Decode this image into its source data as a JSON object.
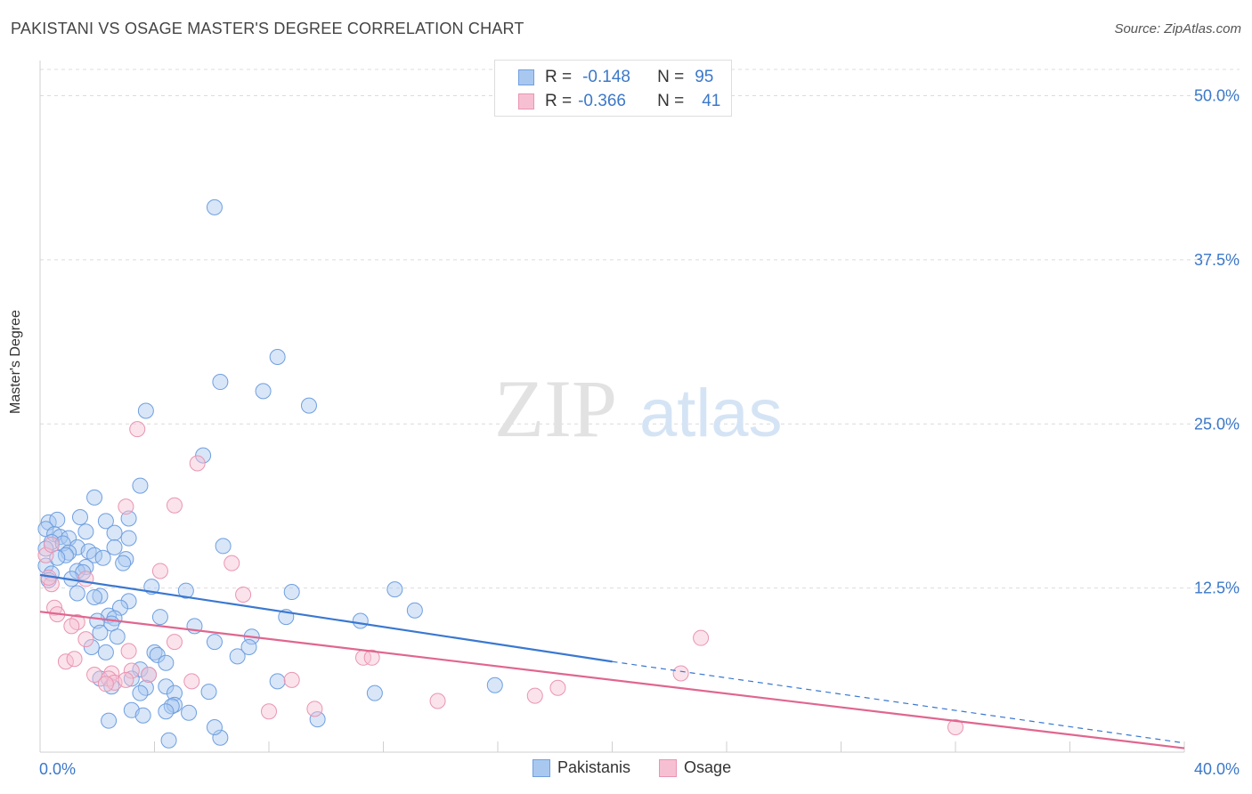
{
  "header": {
    "title": "PAKISTANI VS OSAGE MASTER'S DEGREE CORRELATION CHART",
    "source": "Source: ZipAtlas.com"
  },
  "watermark": {
    "zip": "ZIP",
    "atlas": "atlas"
  },
  "legend": {
    "rows": [
      {
        "r_label": "R =",
        "r_value": "-0.148",
        "n_label": "N =",
        "n_value": "95",
        "color": "#a9c8f0",
        "stroke": "#6f9fe0"
      },
      {
        "r_label": "R =",
        "r_value": "-0.366",
        "n_label": "N =",
        "n_value": "41",
        "color": "#f6c0d2",
        "stroke": "#e995b2"
      }
    ]
  },
  "bottom_legend": [
    {
      "label": "Pakistanis",
      "color": "#a9c8f0",
      "stroke": "#6f9fe0"
    },
    {
      "label": "Osage",
      "color": "#f6c0d2",
      "stroke": "#e995b2"
    }
  ],
  "chart_data": {
    "type": "scatter",
    "title": "PAKISTANI VS OSAGE MASTER'S DEGREE CORRELATION CHART",
    "xlabel": "",
    "ylabel": "Master's Degree",
    "xlim": [
      0,
      40
    ],
    "ylim": [
      0,
      52
    ],
    "x_tick_labels": [
      "0.0%",
      "40.0%"
    ],
    "y_ticks": [
      12.5,
      25.0,
      37.5,
      50.0
    ],
    "y_tick_labels": [
      "12.5%",
      "25.0%",
      "37.5%",
      "50.0%"
    ],
    "grid": true,
    "colors": {
      "Pakistanis": "#3a78d0",
      "Osage": "#e0668f",
      "tick": "#3b78c9"
    },
    "series": [
      {
        "name": "Pakistanis",
        "points": [
          [
            6.1,
            41.5
          ],
          [
            8.3,
            30.1
          ],
          [
            6.3,
            28.2
          ],
          [
            7.8,
            27.5
          ],
          [
            9.4,
            26.4
          ],
          [
            3.7,
            26.0
          ],
          [
            5.7,
            22.6
          ],
          [
            3.5,
            20.3
          ],
          [
            1.9,
            19.4
          ],
          [
            0.3,
            17.5
          ],
          [
            0.6,
            17.7
          ],
          [
            1.4,
            17.9
          ],
          [
            2.3,
            17.6
          ],
          [
            3.1,
            17.8
          ],
          [
            0.2,
            17.0
          ],
          [
            0.5,
            16.6
          ],
          [
            0.7,
            16.4
          ],
          [
            1.0,
            16.3
          ],
          [
            1.6,
            16.8
          ],
          [
            2.6,
            16.7
          ],
          [
            3.1,
            16.3
          ],
          [
            0.4,
            16.0
          ],
          [
            0.8,
            15.9
          ],
          [
            1.3,
            15.6
          ],
          [
            1.7,
            15.3
          ],
          [
            2.6,
            15.6
          ],
          [
            6.4,
            15.7
          ],
          [
            0.2,
            15.5
          ],
          [
            1.0,
            15.2
          ],
          [
            0.9,
            15.0
          ],
          [
            1.9,
            15.0
          ],
          [
            2.2,
            14.8
          ],
          [
            3.0,
            14.7
          ],
          [
            2.9,
            14.4
          ],
          [
            1.6,
            14.1
          ],
          [
            1.3,
            13.8
          ],
          [
            1.5,
            13.7
          ],
          [
            0.2,
            14.2
          ],
          [
            0.4,
            13.6
          ],
          [
            0.3,
            13.1
          ],
          [
            1.1,
            13.2
          ],
          [
            3.9,
            12.6
          ],
          [
            5.1,
            12.3
          ],
          [
            8.8,
            12.2
          ],
          [
            12.4,
            12.4
          ],
          [
            1.3,
            12.1
          ],
          [
            2.1,
            11.9
          ],
          [
            1.9,
            11.8
          ],
          [
            3.1,
            11.5
          ],
          [
            2.8,
            11.0
          ],
          [
            13.1,
            10.8
          ],
          [
            2.4,
            10.4
          ],
          [
            2.6,
            10.2
          ],
          [
            4.2,
            10.3
          ],
          [
            8.6,
            10.3
          ],
          [
            11.2,
            10.0
          ],
          [
            2.0,
            10.0
          ],
          [
            2.5,
            9.8
          ],
          [
            2.1,
            9.1
          ],
          [
            5.4,
            9.6
          ],
          [
            2.7,
            8.8
          ],
          [
            7.4,
            8.8
          ],
          [
            6.1,
            8.4
          ],
          [
            1.8,
            8.0
          ],
          [
            7.3,
            8.0
          ],
          [
            2.3,
            7.6
          ],
          [
            4.0,
            7.6
          ],
          [
            4.1,
            7.4
          ],
          [
            6.9,
            7.3
          ],
          [
            4.4,
            6.8
          ],
          [
            3.5,
            6.3
          ],
          [
            3.8,
            5.9
          ],
          [
            2.1,
            5.6
          ],
          [
            3.2,
            5.6
          ],
          [
            8.3,
            5.4
          ],
          [
            15.9,
            5.1
          ],
          [
            2.5,
            5.0
          ],
          [
            3.7,
            4.9
          ],
          [
            4.4,
            5.0
          ],
          [
            3.5,
            4.5
          ],
          [
            4.7,
            4.5
          ],
          [
            5.9,
            4.6
          ],
          [
            11.7,
            4.5
          ],
          [
            4.7,
            3.6
          ],
          [
            4.6,
            3.5
          ],
          [
            3.2,
            3.2
          ],
          [
            4.4,
            3.1
          ],
          [
            5.2,
            3.0
          ],
          [
            3.6,
            2.8
          ],
          [
            2.4,
            2.4
          ],
          [
            9.7,
            2.5
          ],
          [
            6.3,
            1.1
          ],
          [
            4.5,
            0.9
          ],
          [
            6.1,
            1.9
          ],
          [
            0.6,
            14.8
          ]
        ],
        "trend": {
          "x_start": 0,
          "y_start": 13.5,
          "x_solid_end": 20,
          "y_solid_end": 6.9,
          "x_end": 40,
          "y_end": 0.7
        }
      },
      {
        "name": "Osage",
        "points": [
          [
            3.4,
            24.6
          ],
          [
            5.5,
            22.0
          ],
          [
            3.0,
            18.7
          ],
          [
            4.7,
            18.8
          ],
          [
            0.2,
            15.0
          ],
          [
            6.7,
            14.4
          ],
          [
            4.2,
            13.8
          ],
          [
            0.4,
            12.8
          ],
          [
            1.6,
            13.2
          ],
          [
            7.1,
            12.0
          ],
          [
            0.5,
            11.0
          ],
          [
            0.6,
            10.5
          ],
          [
            1.3,
            9.9
          ],
          [
            1.1,
            9.6
          ],
          [
            1.6,
            8.6
          ],
          [
            4.7,
            8.4
          ],
          [
            23.1,
            8.7
          ],
          [
            0.9,
            6.9
          ],
          [
            1.2,
            7.1
          ],
          [
            3.1,
            7.7
          ],
          [
            11.3,
            7.2
          ],
          [
            11.6,
            7.2
          ],
          [
            3.2,
            6.2
          ],
          [
            1.9,
            5.9
          ],
          [
            2.5,
            6.0
          ],
          [
            3.8,
            5.9
          ],
          [
            2.4,
            5.6
          ],
          [
            2.6,
            5.3
          ],
          [
            3.0,
            5.5
          ],
          [
            2.3,
            5.2
          ],
          [
            5.3,
            5.4
          ],
          [
            8.8,
            5.5
          ],
          [
            22.4,
            6.0
          ],
          [
            18.1,
            4.9
          ],
          [
            17.3,
            4.3
          ],
          [
            13.9,
            3.9
          ],
          [
            8.0,
            3.1
          ],
          [
            9.6,
            3.3
          ],
          [
            0.4,
            15.8
          ],
          [
            0.3,
            13.3
          ],
          [
            32.0,
            1.9
          ]
        ],
        "trend": {
          "x_start": 0,
          "y_start": 10.7,
          "x_end": 40,
          "y_end": 0.3
        }
      }
    ]
  }
}
